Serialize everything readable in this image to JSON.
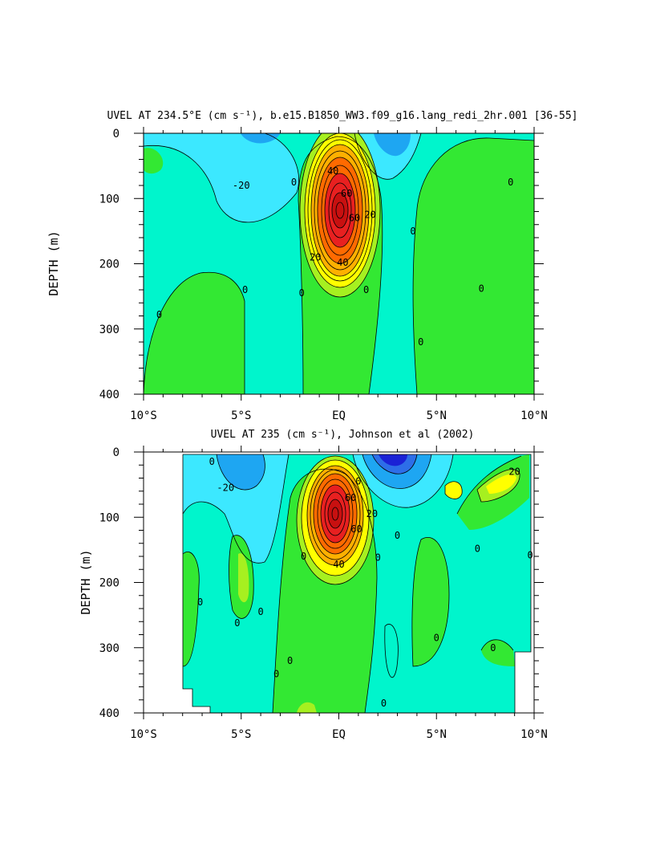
{
  "chart_data": [
    {
      "type": "heatmap",
      "title": "UVEL AT 234.5°E (cm s⁻¹), b.e15.B1850_WW3.f09_g16.lang_redi_2hr.001 [36-55]",
      "xlabel": "",
      "ylabel": "DEPTH (m)",
      "x_tick_labels": [
        "10°S",
        "5°S",
        "EQ",
        "5°N",
        "10°N"
      ],
      "x_ticks": [
        -10,
        -5,
        0,
        5,
        10
      ],
      "y_tick_labels": [
        "0",
        "100",
        "200",
        "300",
        "400"
      ],
      "y_ticks": [
        0,
        100,
        200,
        300,
        400
      ],
      "xlim": [
        -10,
        10
      ],
      "ylim": [
        400,
        0
      ],
      "contour_labels": [
        {
          "text": "-20",
          "x": -5.0,
          "y": 80
        },
        {
          "text": "0",
          "x": -2.3,
          "y": 75
        },
        {
          "text": "40",
          "x": -0.3,
          "y": 58
        },
        {
          "text": "60",
          "x": 0.4,
          "y": 92
        },
        {
          "text": "60",
          "x": 0.8,
          "y": 130
        },
        {
          "text": "20",
          "x": 1.6,
          "y": 125
        },
        {
          "text": "0",
          "x": 3.8,
          "y": 150
        },
        {
          "text": "0",
          "x": 8.8,
          "y": 75
        },
        {
          "text": "20",
          "x": -1.2,
          "y": 190
        },
        {
          "text": "40",
          "x": 0.2,
          "y": 198
        },
        {
          "text": "0",
          "x": -4.8,
          "y": 240
        },
        {
          "text": "0",
          "x": -1.9,
          "y": 245
        },
        {
          "text": "0",
          "x": 1.4,
          "y": 240
        },
        {
          "text": "0",
          "x": 7.3,
          "y": 238
        },
        {
          "text": "0",
          "x": -9.2,
          "y": 278
        },
        {
          "text": "0",
          "x": 4.2,
          "y": 320
        }
      ],
      "max_value_approx": 100,
      "min_value_approx": -30
    },
    {
      "type": "heatmap",
      "title": "UVEL AT 235 (cm s⁻¹), Johnson et al (2002)",
      "xlabel": "",
      "ylabel": "DEPTH (m)",
      "x_tick_labels": [
        "10°S",
        "5°S",
        "EQ",
        "5°N",
        "10°N"
      ],
      "x_ticks": [
        -10,
        -5,
        0,
        5,
        10
      ],
      "y_tick_labels": [
        "0",
        "100",
        "200",
        "300",
        "400"
      ],
      "y_ticks": [
        0,
        100,
        200,
        300,
        400
      ],
      "xlim": [
        -10,
        10
      ],
      "ylim": [
        400,
        0
      ],
      "contour_labels": [
        {
          "text": "0",
          "x": -6.5,
          "y": 15
        },
        {
          "text": "-20",
          "x": -5.8,
          "y": 55
        },
        {
          "text": "0",
          "x": 1.0,
          "y": 45
        },
        {
          "text": "60",
          "x": 0.6,
          "y": 70
        },
        {
          "text": "20",
          "x": 1.7,
          "y": 95
        },
        {
          "text": "60",
          "x": 0.9,
          "y": 118
        },
        {
          "text": "20",
          "x": 9.0,
          "y": 30
        },
        {
          "text": "0",
          "x": 2.0,
          "y": 162
        },
        {
          "text": "0",
          "x": 3.0,
          "y": 128
        },
        {
          "text": "0",
          "x": -1.8,
          "y": 160
        },
        {
          "text": "0",
          "x": 7.1,
          "y": 148
        },
        {
          "text": "0",
          "x": 9.8,
          "y": 158
        },
        {
          "text": "40",
          "x": 0.0,
          "y": 172
        },
        {
          "text": "0",
          "x": -7.1,
          "y": 230
        },
        {
          "text": "0",
          "x": -5.2,
          "y": 262
        },
        {
          "text": "0",
          "x": -4.0,
          "y": 245
        },
        {
          "text": "0",
          "x": 5.0,
          "y": 285
        },
        {
          "text": "0",
          "x": 7.9,
          "y": 300
        },
        {
          "text": "0",
          "x": -2.5,
          "y": 320
        },
        {
          "text": "0",
          "x": -3.2,
          "y": 340
        },
        {
          "text": "0",
          "x": 2.3,
          "y": 385
        }
      ],
      "max_value_approx": 100,
      "min_value_approx": -60
    }
  ],
  "colors": {
    "strong_negative": "#1a22d6",
    "negative_3": "#2d6ee8",
    "negative_2": "#1ea6f2",
    "negative_1": "#3ce8ff",
    "zero_band": "#00f5cc",
    "positive_1": "#33e833",
    "positive_2": "#a6f020",
    "positive_3": "#ffff00",
    "positive_4": "#ffb000",
    "positive_5": "#ff6a00",
    "positive_6": "#e82020",
    "positive_7": "#c81010"
  }
}
